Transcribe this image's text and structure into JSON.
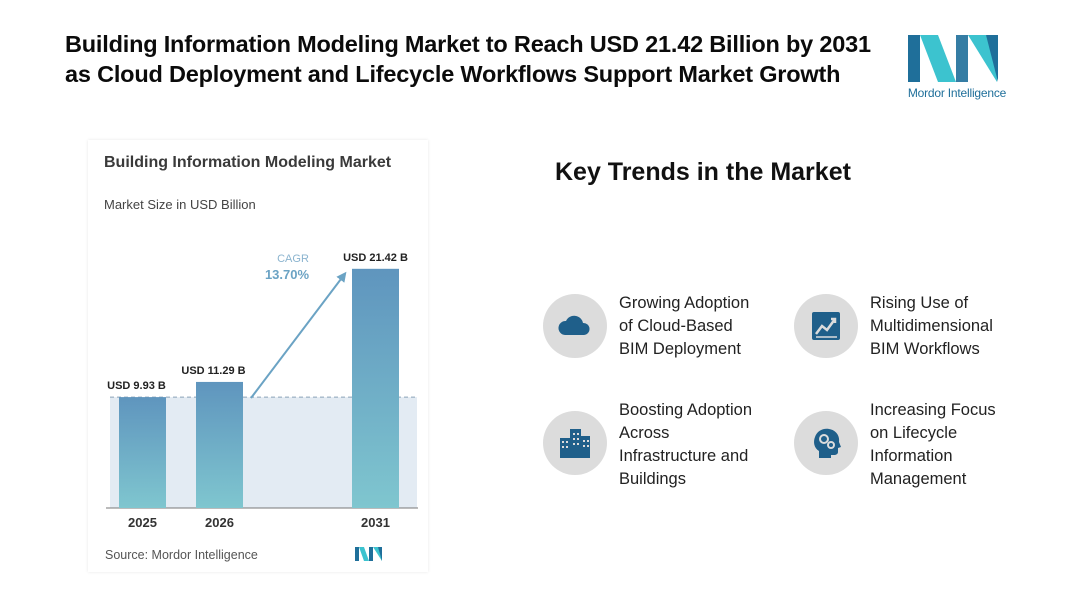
{
  "headline": "Building Information Modeling Market to Reach USD 21.42 Billion by 2031 as Cloud Deployment and Lifecycle Workflows Support Market Growth",
  "brand": {
    "name": "Mordor Intelligence",
    "color_dark": "#1f6f9a",
    "color_light": "#3cc3cf"
  },
  "chart_data": {
    "type": "bar",
    "title": "Building Information Modeling Market",
    "subtitle": "Market Size in USD Billion",
    "categories": [
      "2025",
      "2026",
      "2031"
    ],
    "values": [
      9.93,
      11.29,
      21.42
    ],
    "value_labels": [
      "USD 9.93 B",
      "USD 11.29 B",
      "USD 21.42 B"
    ],
    "cagr_label": "CAGR",
    "cagr_value": "13.70%",
    "ylim": [
      0,
      24
    ],
    "grid": false,
    "bar_color_top": "#5f95be",
    "bar_color_bottom": "#7fc6cf",
    "source": "Source: Mordor Intelligence"
  },
  "trends": {
    "title": "Key Trends in the Market",
    "items": [
      {
        "icon": "cloud-icon",
        "lines": [
          "Growing Adoption",
          "of Cloud-Based",
          "BIM Deployment"
        ]
      },
      {
        "icon": "line-chart-icon",
        "lines": [
          "Rising Use of",
          "Multidimensional",
          "BIM Workflows"
        ]
      },
      {
        "icon": "buildings-icon",
        "lines": [
          "Boosting Adoption",
          "Across",
          "Infrastructure and",
          "Buildings"
        ]
      },
      {
        "icon": "head-gears-icon",
        "lines": [
          "Increasing Focus",
          "on Lifecycle",
          "Information",
          "Management"
        ]
      }
    ]
  }
}
